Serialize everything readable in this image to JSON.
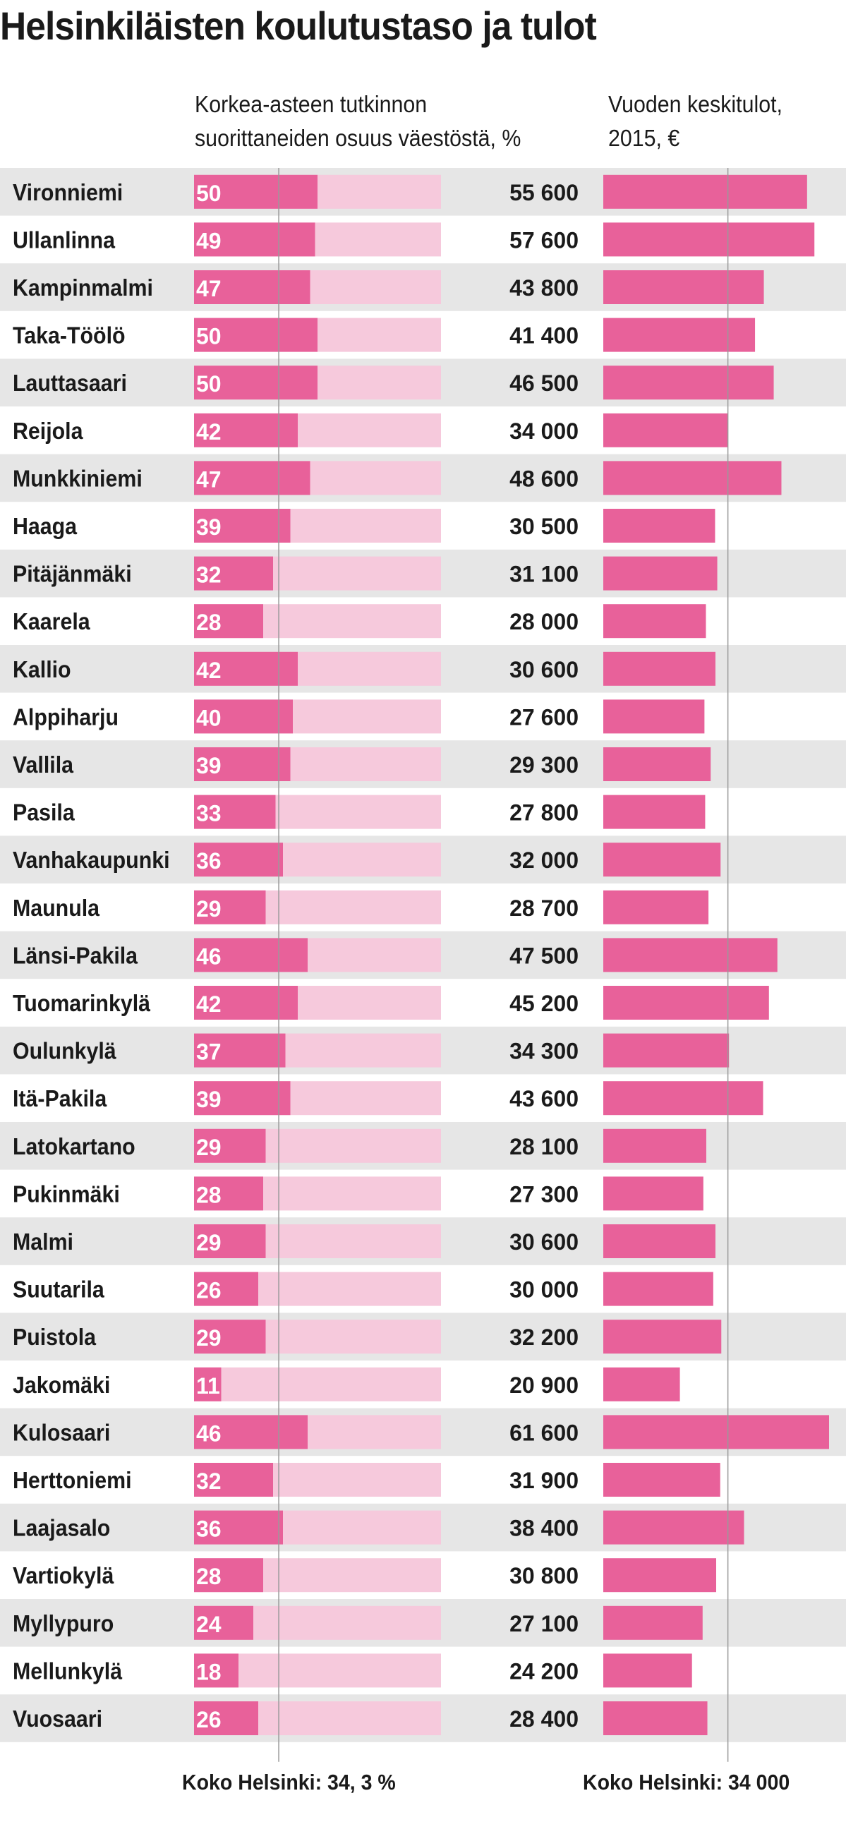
{
  "title": "Helsinkiläisten koulutustaso ja tulot",
  "left_header": {
    "line1": "Korkea-asteen tutkinnon",
    "line2": "suorittaneiden osuus väestöstä, %"
  },
  "right_header": {
    "line1": "Vuoden keskitulot,",
    "line2": "2015, €"
  },
  "footer": {
    "left": "Koko Helsinki: 34, 3 %",
    "right": "Koko Helsinki: 34 000"
  },
  "colors": {
    "bar": "#e8619a",
    "bar_track": "#f6c9dc",
    "row_stripe": "#e6e6e6",
    "reference_line": "#9a9a9a"
  },
  "chart_data": [
    {
      "type": "bar",
      "orientation": "horizontal",
      "categories": [
        "Vironniemi",
        "Ullanlinna",
        "Kampinmalmi",
        "Taka-Töölö",
        "Lauttasaari",
        "Reijola",
        "Munkkiniemi",
        "Haaga",
        "Pitäjänmäki",
        "Kaarela",
        "Kallio",
        "Alppiharju",
        "Vallila",
        "Pasila",
        "Vanhakaupunki",
        "Maunula",
        "Länsi-Pakila",
        "Tuomarinkylä",
        "Oulunkylä",
        "Itä-Pakila",
        "Latokartano",
        "Pukinmäki",
        "Malmi",
        "Suutarila",
        "Puistola",
        "Jakomäki",
        "Kulosaari",
        "Herttoniemi",
        "Laajasalo",
        "Vartiokylä",
        "Myllypuro",
        "Mellunkylä",
        "Vuosaari"
      ],
      "values": [
        50,
        49,
        47,
        50,
        50,
        42,
        47,
        39,
        32,
        28,
        42,
        40,
        39,
        33,
        36,
        29,
        46,
        42,
        37,
        39,
        29,
        28,
        29,
        26,
        29,
        11,
        46,
        32,
        36,
        28,
        24,
        18,
        26
      ],
      "labels": [
        "50",
        "49",
        "47",
        "50",
        "50",
        "42",
        "47",
        "39",
        "32",
        "28",
        "42",
        "40",
        "39",
        "33",
        "36",
        "29",
        "46",
        "42",
        "37",
        "39",
        "29",
        "28",
        "29",
        "26",
        "29",
        "11",
        "46",
        "32",
        "36",
        "28",
        "24",
        "18",
        "26"
      ],
      "xlim": [
        0,
        100
      ],
      "reference_value": 34.3,
      "title": "Korkea-asteen tutkinnon suorittaneiden osuus väestöstä, %"
    },
    {
      "type": "bar",
      "orientation": "horizontal",
      "categories": [
        "Vironniemi",
        "Ullanlinna",
        "Kampinmalmi",
        "Taka-Töölö",
        "Lauttasaari",
        "Reijola",
        "Munkkiniemi",
        "Haaga",
        "Pitäjänmäki",
        "Kaarela",
        "Kallio",
        "Alppiharju",
        "Vallila",
        "Pasila",
        "Vanhakaupunki",
        "Maunula",
        "Länsi-Pakila",
        "Tuomarinkylä",
        "Oulunkylä",
        "Itä-Pakila",
        "Latokartano",
        "Pukinmäki",
        "Malmi",
        "Suutarila",
        "Puistola",
        "Jakomäki",
        "Kulosaari",
        "Herttoniemi",
        "Laajasalo",
        "Vartiokylä",
        "Myllypuro",
        "Mellunkylä",
        "Vuosaari"
      ],
      "values": [
        55600,
        57600,
        43800,
        41400,
        46500,
        34000,
        48600,
        30500,
        31100,
        28000,
        30600,
        27600,
        29300,
        27800,
        32000,
        28700,
        47500,
        45200,
        34300,
        43600,
        28100,
        27300,
        30600,
        30000,
        32200,
        20900,
        61600,
        31900,
        38400,
        30800,
        27100,
        24200,
        28400
      ],
      "labels": [
        "55 600",
        "57 600",
        "43 800",
        "41 400",
        "46 500",
        "34 000",
        "48 600",
        "30 500",
        "31 100",
        "28 000",
        "30 600",
        "27 600",
        "29 300",
        "27 800",
        "32 000",
        "28 700",
        "47 500",
        "45 200",
        "34 300",
        "43 600",
        "28 100",
        "27 300",
        "30 600",
        "30 000",
        "32 200",
        "20 900",
        "61 600",
        "31 900",
        "38 400",
        "30 800",
        "27 100",
        "24 200",
        "28 400"
      ],
      "xlim": [
        0,
        61600
      ],
      "reference_value": 34000,
      "title": "Vuoden keskitulot, 2015, €"
    }
  ]
}
